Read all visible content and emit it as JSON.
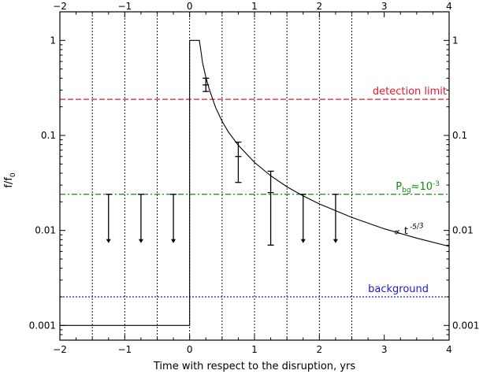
{
  "chart_data": {
    "type": "line",
    "xlabel": "Time with respect to the disruption, yrs",
    "ylabel_main": "f/f",
    "ylabel_sub": "0",
    "xlim": [
      -2,
      4
    ],
    "ylim": [
      0.0007,
      2
    ],
    "y_scale": "log",
    "x_ticks": [
      -2,
      -1,
      0,
      1,
      2,
      3,
      4
    ],
    "x_tick_labels": [
      "−2",
      "−1",
      "0",
      "1",
      "2",
      "3",
      "4"
    ],
    "y_ticks": [
      0.001,
      0.01,
      0.1,
      1
    ],
    "y_tick_labels": [
      "0.001",
      "0.01",
      "0.1",
      "1"
    ],
    "grid": false,
    "series": [
      {
        "kind": "light_curve",
        "color": "#000000",
        "points": [
          [
            -2,
            0.001
          ],
          [
            0,
            0.001
          ],
          [
            0,
            1
          ],
          [
            0.15,
            1
          ],
          [
            0.2,
            0.58
          ],
          [
            0.25,
            0.41
          ],
          [
            0.3,
            0.31
          ],
          [
            0.4,
            0.197
          ],
          [
            0.5,
            0.141
          ],
          [
            0.6,
            0.108
          ],
          [
            0.75,
            0.079
          ],
          [
            1.0,
            0.052
          ],
          [
            1.25,
            0.0376
          ],
          [
            1.5,
            0.0288
          ],
          [
            1.75,
            0.0231
          ],
          [
            2.0,
            0.019
          ],
          [
            2.5,
            0.0137
          ],
          [
            3.0,
            0.0104
          ],
          [
            3.5,
            0.0083
          ],
          [
            4.0,
            0.0068
          ]
        ]
      },
      {
        "kind": "detections",
        "color": "#000000",
        "points": [
          {
            "x": 0.25,
            "y": 0.34,
            "ylo": 0.29,
            "yhi": 0.4
          },
          {
            "x": 0.75,
            "y": 0.06,
            "ylo": 0.032,
            "yhi": 0.085
          },
          {
            "x": 1.25,
            "y": 0.025,
            "ylo": 0.007,
            "yhi": 0.042
          }
        ]
      },
      {
        "kind": "upper_limits",
        "color": "#000000",
        "x": [
          -1.25,
          -0.75,
          -0.25,
          1.75,
          2.25
        ],
        "from": 0.024,
        "to": 0.0075
      }
    ],
    "vertical_lines": {
      "x": [
        -1.5,
        -1.0,
        -0.5,
        0.0,
        0.5,
        1.0,
        1.5,
        2.0,
        2.5
      ],
      "color": "#000000",
      "style": "dotted"
    },
    "horizontal_lines": [
      {
        "y": 0.24,
        "color": "#e8192c",
        "style": "dashed",
        "label": "detection limit"
      },
      {
        "y": 0.024,
        "color": "#118a11",
        "style": "dashdot",
        "label_main": "P",
        "label_sub": "bg",
        "label_rest": "≈10",
        "label_sup": "-3"
      },
      {
        "y": 0.002,
        "color": "#1a1adb",
        "style": "dotted",
        "label": "background"
      }
    ],
    "annotations": [
      {
        "text_main": "∝ t",
        "text_sup": " -5/3",
        "x": 3.15,
        "y": 0.0088
      }
    ]
  }
}
